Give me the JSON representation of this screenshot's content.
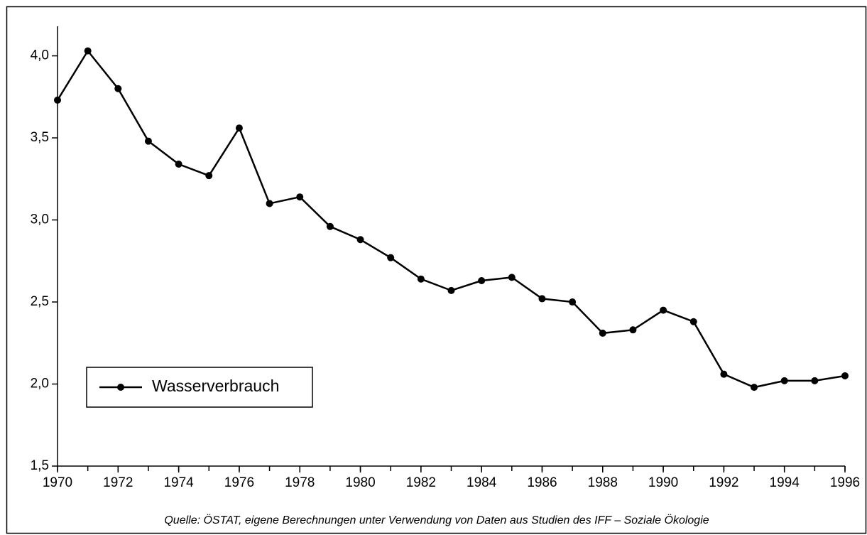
{
  "chart_data": {
    "type": "line",
    "note": "Quelle: ÖSTAT, eigene Berechnungen unter Verwendung von Daten aus Studien des IFF – Soziale Ökologie",
    "x": [
      1970,
      1971,
      1972,
      1973,
      1974,
      1975,
      1976,
      1977,
      1978,
      1979,
      1980,
      1981,
      1982,
      1983,
      1984,
      1985,
      1986,
      1987,
      1988,
      1989,
      1990,
      1991,
      1992,
      1993,
      1994,
      1995,
      1996
    ],
    "series": [
      {
        "name": "Wasserverbrauch",
        "color": "#000000",
        "values": [
          3.73,
          4.03,
          3.8,
          3.48,
          3.34,
          3.27,
          3.56,
          3.1,
          3.14,
          2.96,
          2.88,
          2.77,
          2.64,
          2.57,
          2.63,
          2.65,
          2.52,
          2.5,
          2.31,
          2.33,
          2.45,
          2.38,
          2.06,
          1.98,
          2.02,
          2.02,
          2.05
        ]
      }
    ],
    "xlim": [
      1970,
      1996
    ],
    "xticks": [
      1970,
      1972,
      1974,
      1976,
      1978,
      1980,
      1982,
      1984,
      1986,
      1988,
      1990,
      1992,
      1994,
      1996
    ],
    "ylim": [
      1.5,
      4.18
    ],
    "yticks": [
      {
        "value": 1.5,
        "label": "1,5"
      },
      {
        "value": 2.0,
        "label": "2,0"
      },
      {
        "value": 2.5,
        "label": "2,5"
      },
      {
        "value": 3.0,
        "label": "3,0"
      },
      {
        "value": 3.5,
        "label": "3,5"
      },
      {
        "value": 4.0,
        "label": "4,0"
      }
    ],
    "legend": "lower left",
    "grid": false
  }
}
